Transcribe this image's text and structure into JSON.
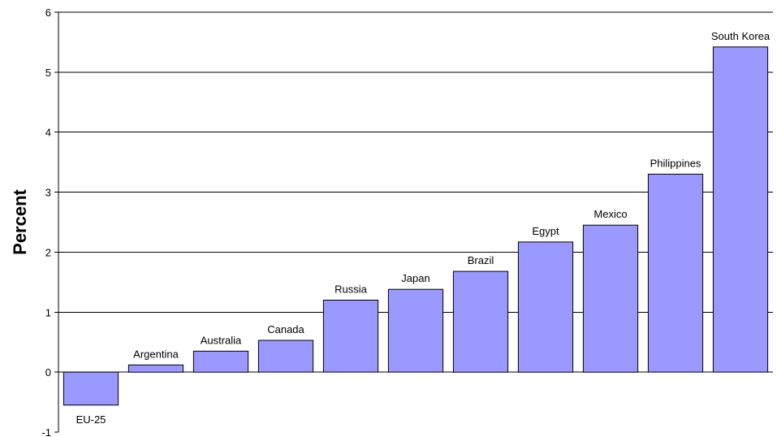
{
  "chart_data": {
    "type": "bar",
    "title": "",
    "xlabel": "",
    "ylabel": "Percent",
    "ylim": [
      -1,
      6
    ],
    "yticks": [
      -1,
      0,
      1,
      2,
      3,
      4,
      5,
      6
    ],
    "grid": true,
    "legend": "none",
    "bar_color": "#9999FF",
    "categories": [
      "EU-25",
      "Argentina",
      "Australia",
      "Canada",
      "Russia",
      "Japan",
      "Brazil",
      "Egypt",
      "Mexico",
      "Philippines",
      "South Korea"
    ],
    "values": [
      -0.55,
      0.12,
      0.35,
      0.53,
      1.2,
      1.38,
      1.68,
      2.17,
      2.45,
      3.3,
      5.42
    ]
  }
}
